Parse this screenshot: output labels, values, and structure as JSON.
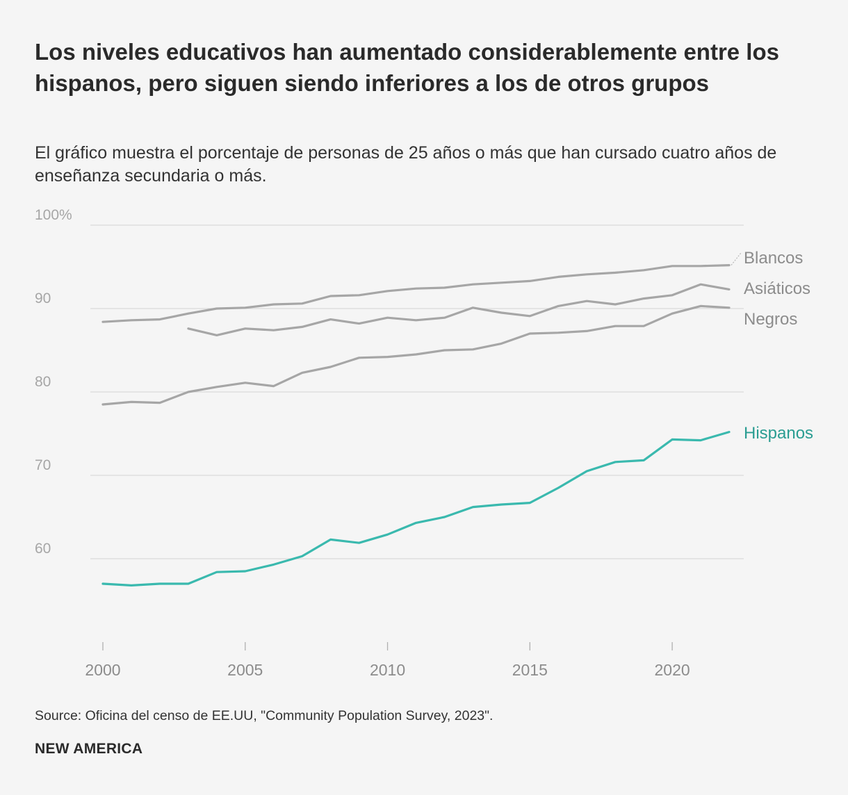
{
  "title": "Los niveles educativos han aumentado considerablemente entre los hispanos, pero siguen siendo inferiores a los de otros grupos",
  "subtitle": "El gráfico muestra el porcentaje de personas de 25 años o más que han cursado cuatro años de enseñanza secundaria o más.",
  "source": "Source: Oficina del censo de EE.UU, \"Community Population Survey, 2023\".",
  "brand": "NEW AMERICA",
  "colors": {
    "gray_series": "#a6a6a6",
    "highlight": "#3ab9ae",
    "highlight_label": "#2a9d92",
    "grid": "#d9d9d9",
    "tick_text": "#a6a6a6",
    "axis_text": "#8c8c8c"
  },
  "chart_data": {
    "type": "line",
    "ylim": [
      50,
      100
    ],
    "xlim": [
      2000,
      2022
    ],
    "yticks": [
      {
        "value": 100,
        "label": "100%"
      },
      {
        "value": 90,
        "label": "90"
      },
      {
        "value": 80,
        "label": "80"
      },
      {
        "value": 70,
        "label": "70"
      },
      {
        "value": 60,
        "label": "60"
      }
    ],
    "xticks": [
      {
        "value": 2000,
        "label": "2000"
      },
      {
        "value": 2005,
        "label": "2005"
      },
      {
        "value": 2010,
        "label": "2010"
      },
      {
        "value": 2015,
        "label": "2015"
      },
      {
        "value": 2020,
        "label": "2020"
      }
    ],
    "series": [
      {
        "name": "Blancos",
        "highlight": false,
        "x": [
          2000,
          2001,
          2002,
          2003,
          2004,
          2005,
          2006,
          2007,
          2008,
          2009,
          2010,
          2011,
          2012,
          2013,
          2014,
          2015,
          2016,
          2017,
          2018,
          2019,
          2020,
          2021,
          2022
        ],
        "values": [
          88.4,
          88.6,
          88.7,
          89.4,
          90.0,
          90.1,
          90.5,
          90.6,
          91.5,
          91.6,
          92.1,
          92.4,
          92.5,
          92.9,
          93.1,
          93.3,
          93.8,
          94.1,
          94.3,
          94.6,
          95.1,
          95.1,
          95.2
        ]
      },
      {
        "name": "Asiáticos",
        "highlight": false,
        "x": [
          2003,
          2004,
          2005,
          2006,
          2007,
          2008,
          2009,
          2010,
          2011,
          2012,
          2013,
          2014,
          2015,
          2016,
          2017,
          2018,
          2019,
          2020,
          2021,
          2022
        ],
        "values": [
          87.6,
          86.8,
          87.6,
          87.4,
          87.8,
          88.7,
          88.2,
          88.9,
          88.6,
          88.9,
          90.1,
          89.5,
          89.1,
          90.3,
          90.9,
          90.5,
          91.2,
          91.6,
          92.9,
          92.3
        ]
      },
      {
        "name": "Negros",
        "highlight": false,
        "x": [
          2000,
          2001,
          2002,
          2003,
          2004,
          2005,
          2006,
          2007,
          2008,
          2009,
          2010,
          2011,
          2012,
          2013,
          2014,
          2015,
          2016,
          2017,
          2018,
          2019,
          2020,
          2021,
          2022
        ],
        "values": [
          78.5,
          78.8,
          78.7,
          80.0,
          80.6,
          81.1,
          80.7,
          82.3,
          83.0,
          84.1,
          84.2,
          84.5,
          85.0,
          85.1,
          85.8,
          87.0,
          87.1,
          87.3,
          87.9,
          87.9,
          89.4,
          90.3,
          90.1
        ]
      },
      {
        "name": "Hispanos",
        "highlight": true,
        "x": [
          2000,
          2001,
          2002,
          2003,
          2004,
          2005,
          2006,
          2007,
          2008,
          2009,
          2010,
          2011,
          2012,
          2013,
          2014,
          2015,
          2016,
          2017,
          2018,
          2019,
          2020,
          2021,
          2022
        ],
        "values": [
          57.0,
          56.8,
          57.0,
          57.0,
          58.4,
          58.5,
          59.3,
          60.3,
          62.3,
          61.9,
          62.9,
          64.3,
          65.0,
          66.2,
          66.5,
          66.7,
          68.5,
          70.5,
          71.6,
          71.8,
          74.3,
          74.2,
          75.2
        ]
      }
    ]
  }
}
